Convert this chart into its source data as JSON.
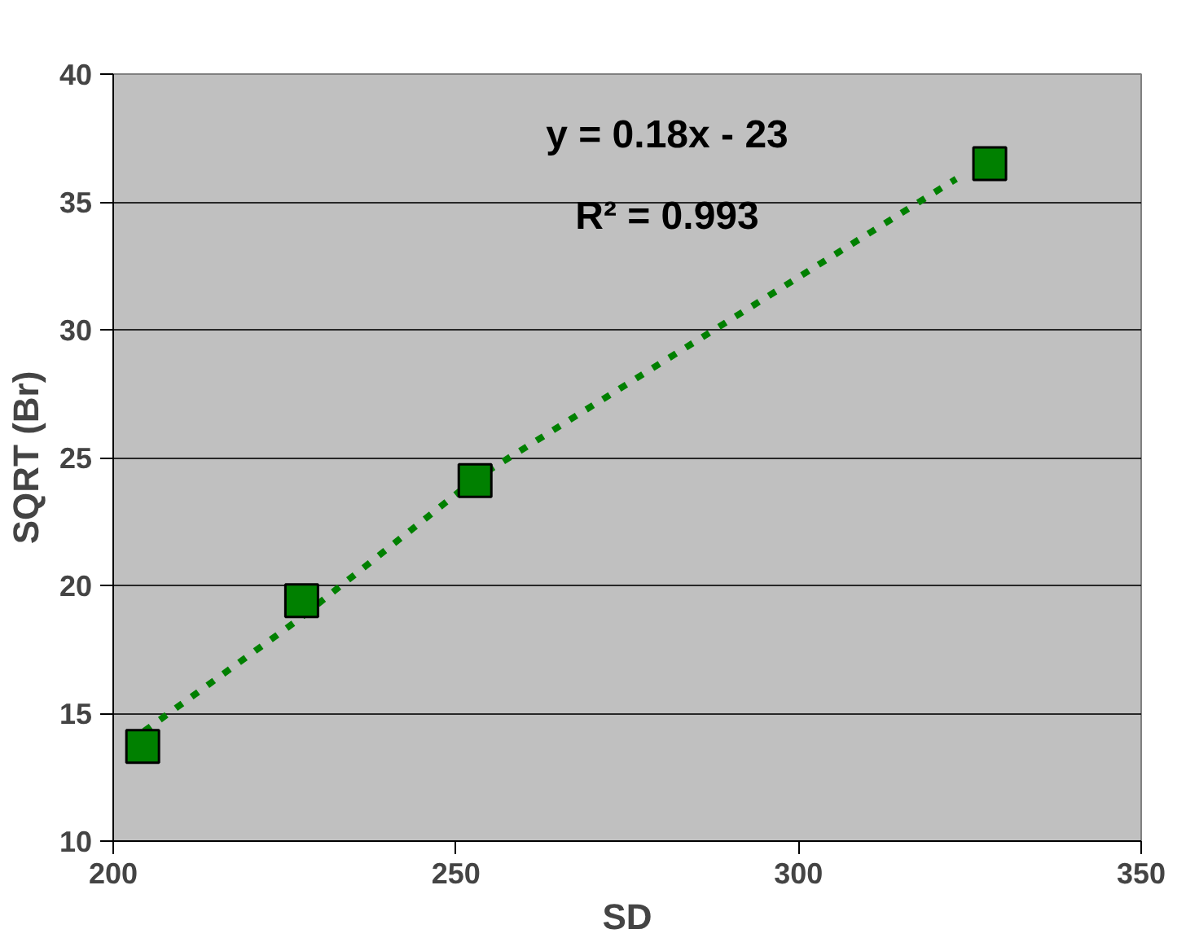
{
  "chart_data": {
    "type": "scatter",
    "xlabel": "SD",
    "ylabel": "SQRT (Br)",
    "annotations": [
      "y = 0.18x - 23",
      "R² = 0.993"
    ],
    "series": [
      {
        "color": "#008000",
        "x": [
          204.3,
          227.5,
          252.8,
          327.9
        ],
        "values": [
          13.7,
          19.4,
          24.1,
          36.5
        ],
        "marker": "square"
      },
      {
        "type": "line",
        "color": "#008000",
        "x": [
          204.5,
          226.7,
          253,
          323
        ],
        "values": [
          14.3,
          18.6,
          24.2,
          35.9
        ],
        "line_style": "dotted",
        "marker": "none"
      }
    ],
    "xlim": [
      200,
      350
    ],
    "xticks": [
      200,
      250,
      300,
      350
    ],
    "ylim": [
      10,
      40
    ],
    "yticks": [
      10,
      15,
      20,
      25,
      30,
      35,
      40
    ],
    "grid": "y"
  }
}
